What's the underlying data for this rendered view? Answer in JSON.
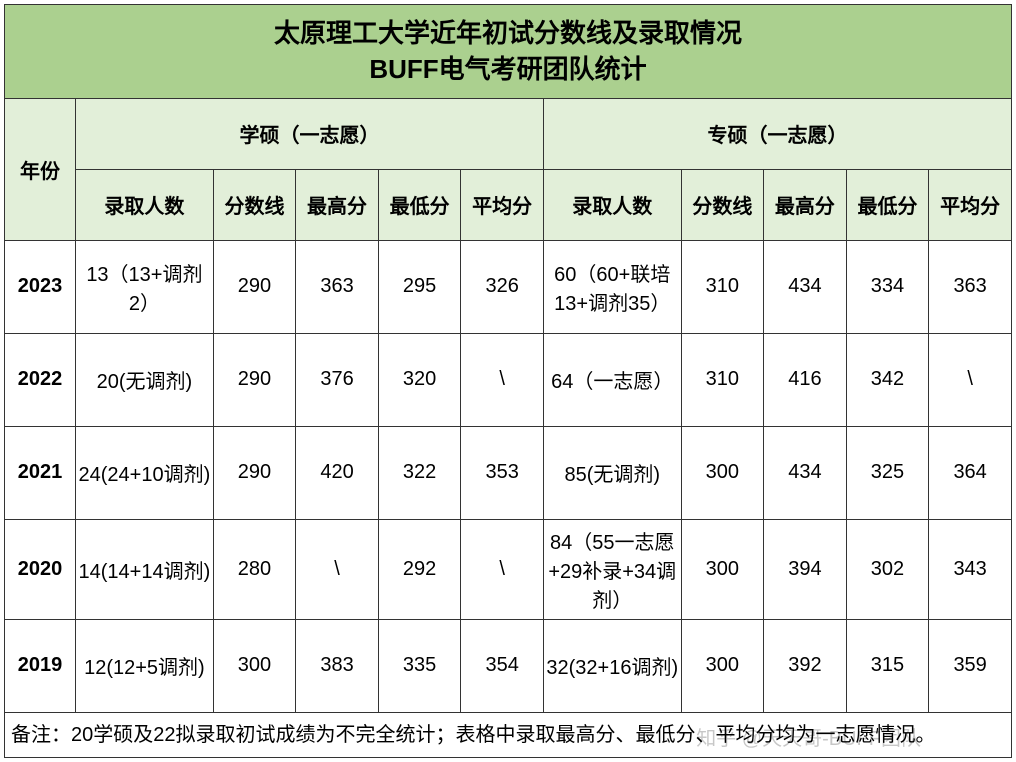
{
  "title_line1": "太原理工大学近年初试分数线及录取情况",
  "title_line2": "BUFF电气考研团队统计",
  "headers": {
    "year": "年份",
    "group_academic": "学硕（一志愿）",
    "group_professional": "专硕（一志愿）",
    "enroll": "录取人数",
    "cutoff": "分数线",
    "max": "最高分",
    "min": "最低分",
    "avg": "平均分"
  },
  "rows": [
    {
      "year": "2023",
      "a_enroll": "13（13+调剂2）",
      "a_cut": "290",
      "a_max": "363",
      "a_min": "295",
      "a_avg": "326",
      "p_enroll": "60（60+联培13+调剂35）",
      "p_cut": "310",
      "p_max": "434",
      "p_min": "334",
      "p_avg": "363"
    },
    {
      "year": "2022",
      "a_enroll": "20(无调剂)",
      "a_cut": "290",
      "a_max": "376",
      "a_min": "320",
      "a_avg": "\\",
      "p_enroll": "64（一志愿）",
      "p_cut": "310",
      "p_max": "416",
      "p_min": "342",
      "p_avg": "\\"
    },
    {
      "year": "2021",
      "a_enroll": "24(24+10调剂)",
      "a_cut": "290",
      "a_max": "420",
      "a_min": "322",
      "a_avg": "353",
      "p_enroll": "85(无调剂)",
      "p_cut": "300",
      "p_max": "434",
      "p_min": "325",
      "p_avg": "364"
    },
    {
      "year": "2020",
      "a_enroll": "14(14+14调剂)",
      "a_cut": "280",
      "a_max": "\\",
      "a_min": "292",
      "a_avg": "\\",
      "p_enroll": "84（55一志愿+29补录+34调剂）",
      "p_cut": "300",
      "p_max": "394",
      "p_min": "302",
      "p_avg": "343"
    },
    {
      "year": "2019",
      "a_enroll": "12(12+5调剂)",
      "a_cut": "300",
      "a_max": "383",
      "a_min": "335",
      "a_avg": "354",
      "p_enroll": "32(32+16调剂)",
      "p_cut": "300",
      "p_max": "392",
      "p_min": "315",
      "p_avg": "359"
    }
  ],
  "note": "备注：20学硕及22拟录取初试成绩为不完全统计；表格中录取最高分、最低分、平均分均为一志愿情况。",
  "watermark": "知乎 @天天哥-BUFF团队",
  "colors": {
    "title_bg": "#abd08f",
    "header_bg": "#e2efd9",
    "border": "#333333",
    "text": "#000000"
  }
}
